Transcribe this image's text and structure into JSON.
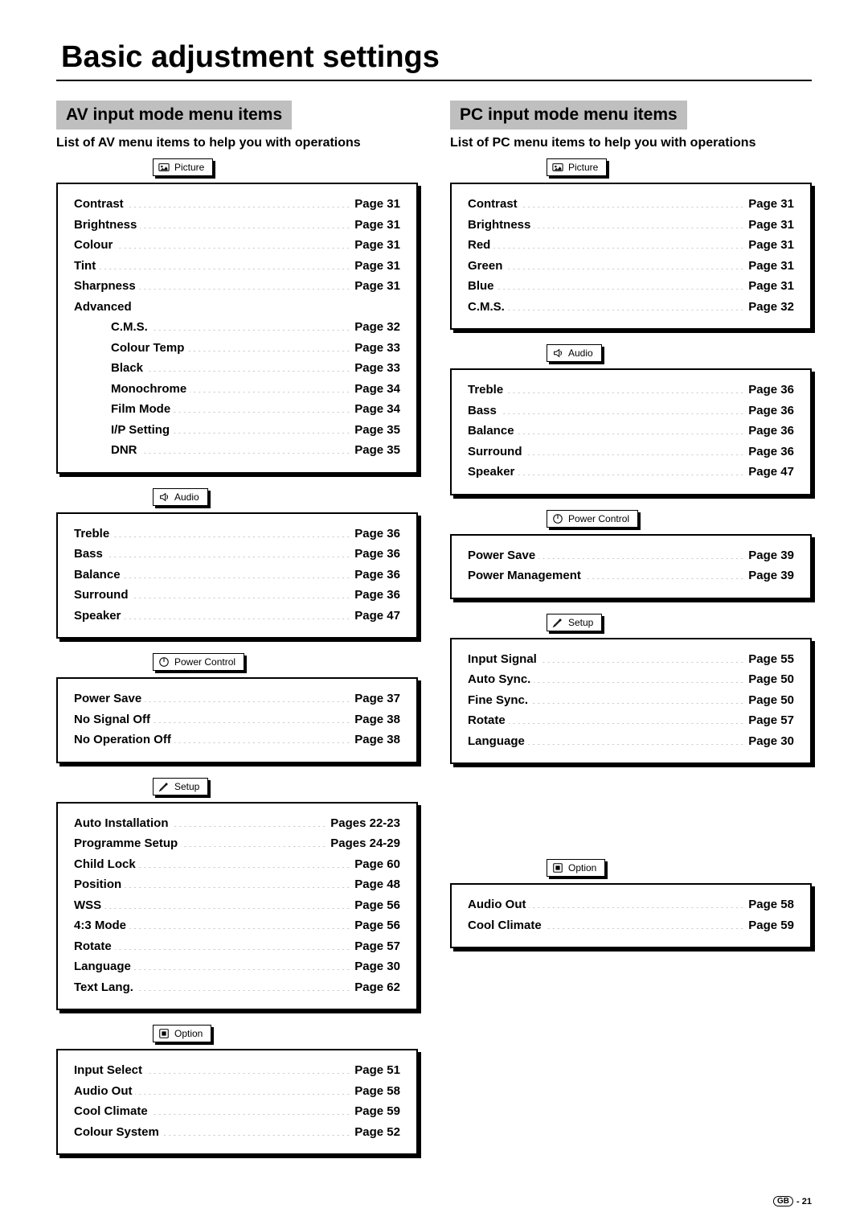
{
  "title": "Basic adjustment settings",
  "footer_region": "GB",
  "footer_page": "- 21",
  "left": {
    "header": "AV input mode menu items",
    "subhead": "List of AV menu items to help you with operations",
    "sections": [
      {
        "tab": "Picture",
        "icon": "picture",
        "items": [
          {
            "label": "Contrast",
            "page": "Page 31"
          },
          {
            "label": "Brightness",
            "page": "Page 31"
          },
          {
            "label": "Colour",
            "page": "Page 31"
          },
          {
            "label": "Tint",
            "page": "Page 31"
          },
          {
            "label": "Sharpness",
            "page": "Page 31"
          },
          {
            "label": "Advanced",
            "page": "",
            "heading": true
          },
          {
            "label": "C.M.S.",
            "page": "Page 32",
            "indent": true
          },
          {
            "label": "Colour Temp",
            "page": "Page 33",
            "indent": true
          },
          {
            "label": "Black",
            "page": "Page 33",
            "indent": true
          },
          {
            "label": "Monochrome",
            "page": "Page 34",
            "indent": true
          },
          {
            "label": "Film Mode",
            "page": "Page 34",
            "indent": true
          },
          {
            "label": "I/P Setting",
            "page": "Page 35",
            "indent": true
          },
          {
            "label": "DNR",
            "page": "Page 35",
            "indent": true
          }
        ]
      },
      {
        "tab": "Audio",
        "icon": "audio",
        "items": [
          {
            "label": "Treble",
            "page": "Page 36"
          },
          {
            "label": "Bass",
            "page": "Page 36"
          },
          {
            "label": "Balance",
            "page": "Page 36"
          },
          {
            "label": "Surround",
            "page": "Page 36"
          },
          {
            "label": "Speaker",
            "page": "Page 47"
          }
        ]
      },
      {
        "tab": "Power Control",
        "icon": "power",
        "items": [
          {
            "label": "Power Save",
            "page": "Page 37"
          },
          {
            "label": "No Signal Off",
            "page": "Page 38"
          },
          {
            "label": "No Operation Off",
            "page": "Page 38"
          }
        ]
      },
      {
        "tab": "Setup",
        "icon": "setup",
        "items": [
          {
            "label": "Auto Installation",
            "page": "Pages 22-23"
          },
          {
            "label": "Programme Setup",
            "page": "Pages 24-29"
          },
          {
            "label": "Child Lock",
            "page": "Page 60"
          },
          {
            "label": "Position",
            "page": "Page 48"
          },
          {
            "label": "WSS",
            "page": "Page 56"
          },
          {
            "label": "4:3 Mode",
            "page": "Page 56"
          },
          {
            "label": "Rotate",
            "page": "Page 57"
          },
          {
            "label": "Language",
            "page": "Page 30"
          },
          {
            "label": "Text Lang.",
            "page": "Page 62"
          }
        ]
      },
      {
        "tab": "Option",
        "icon": "option",
        "items": [
          {
            "label": "Input Select",
            "page": "Page 51"
          },
          {
            "label": "Audio Out",
            "page": "Page 58"
          },
          {
            "label": "Cool Climate",
            "page": "Page 59"
          },
          {
            "label": "Colour System",
            "page": "Page 52"
          }
        ]
      }
    ]
  },
  "right": {
    "header": "PC input mode menu items",
    "subhead": "List of PC menu items to help you with operations",
    "sections": [
      {
        "tab": "Picture",
        "icon": "picture",
        "items": [
          {
            "label": "Contrast",
            "page": "Page 31"
          },
          {
            "label": "Brightness",
            "page": "Page 31"
          },
          {
            "label": "Red",
            "page": "Page 31"
          },
          {
            "label": "Green",
            "page": "Page 31"
          },
          {
            "label": "Blue",
            "page": "Page 31"
          },
          {
            "label": "C.M.S.",
            "page": "Page 32"
          }
        ]
      },
      {
        "tab": "Audio",
        "icon": "audio",
        "items": [
          {
            "label": "Treble",
            "page": "Page 36"
          },
          {
            "label": "Bass",
            "page": "Page 36"
          },
          {
            "label": "Balance",
            "page": "Page 36"
          },
          {
            "label": "Surround",
            "page": "Page 36"
          },
          {
            "label": "Speaker",
            "page": "Page 47"
          }
        ]
      },
      {
        "tab": "Power Control",
        "icon": "power",
        "items": [
          {
            "label": "Power Save",
            "page": "Page 39"
          },
          {
            "label": "Power Management",
            "page": "Page 39"
          }
        ]
      },
      {
        "tab": "Setup",
        "icon": "setup",
        "items": [
          {
            "label": "Input Signal",
            "page": "Page 55"
          },
          {
            "label": "Auto Sync.",
            "page": "Page 50"
          },
          {
            "label": "Fine Sync.",
            "page": "Page 50"
          },
          {
            "label": "Rotate",
            "page": "Page 57"
          },
          {
            "label": "Language",
            "page": "Page 30"
          }
        ],
        "gapAfter": 100
      },
      {
        "tab": "Option",
        "icon": "option",
        "items": [
          {
            "label": "Audio Out",
            "page": "Page 58"
          },
          {
            "label": "Cool Climate",
            "page": "Page 59"
          }
        ]
      }
    ]
  }
}
